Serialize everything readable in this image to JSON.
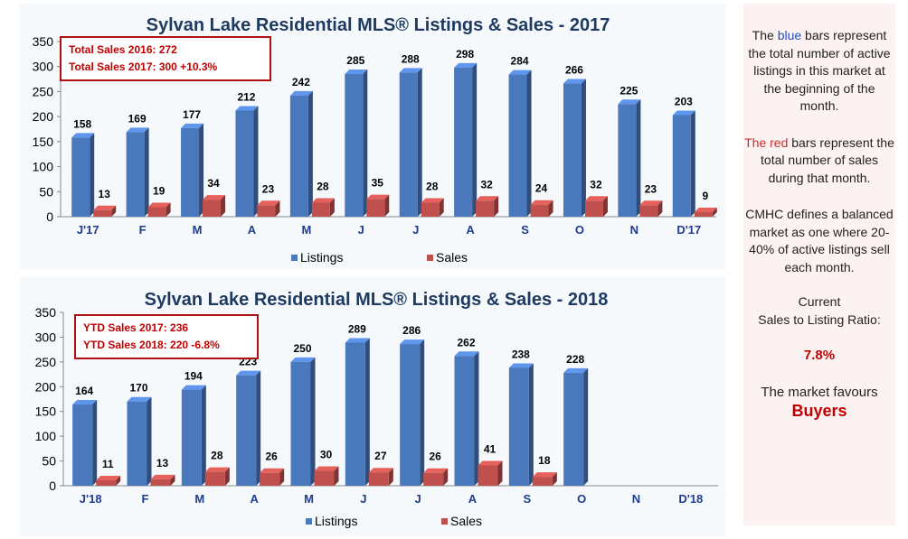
{
  "chart_data": [
    {
      "type": "bar",
      "title": "Sylvan Lake Residential MLS® Listings & Sales - 2017",
      "categories": [
        "J'17",
        "F",
        "M",
        "A",
        "M",
        "J",
        "J",
        "A",
        "S",
        "O",
        "N",
        "D'17"
      ],
      "series": [
        {
          "name": "Listings",
          "values": [
            158,
            169,
            177,
            212,
            242,
            285,
            288,
            298,
            284,
            266,
            225,
            203
          ]
        },
        {
          "name": "Sales",
          "values": [
            13,
            19,
            34,
            23,
            28,
            35,
            28,
            32,
            24,
            32,
            23,
            9
          ]
        }
      ],
      "yticks": [
        "0",
        "50",
        "100",
        "150",
        "200",
        "250",
        "300",
        "350"
      ],
      "ylim": [
        0,
        350
      ],
      "grid": false,
      "legend": "bottom",
      "colors": {
        "Listings": "#4a78bd",
        "Sales": "#c0504d"
      },
      "annotation": {
        "line1": "Total Sales 2016: 272",
        "line2": "Total Sales 2017: 300  +10.3%"
      }
    },
    {
      "type": "bar",
      "title": "Sylvan Lake Residential MLS® Listings & Sales - 2018",
      "categories": [
        "J'18",
        "F",
        "M",
        "A",
        "M",
        "J",
        "J",
        "A",
        "S",
        "O",
        "N",
        "D'18"
      ],
      "series": [
        {
          "name": "Listings",
          "values": [
            164,
            170,
            194,
            223,
            250,
            289,
            286,
            262,
            238,
            228,
            null,
            null
          ]
        },
        {
          "name": "Sales",
          "values": [
            11,
            13,
            28,
            26,
            30,
            27,
            26,
            41,
            18,
            null,
            null,
            null
          ]
        }
      ],
      "yticks": [
        "0",
        "50",
        "100",
        "150",
        "200",
        "250",
        "300",
        "350"
      ],
      "ylim": [
        0,
        350
      ],
      "grid": false,
      "legend": "bottom",
      "colors": {
        "Listings": "#4a78bd",
        "Sales": "#c0504d"
      },
      "annotation": {
        "line1": "YTD Sales 2017: 236",
        "line2": "YTD Sales 2018: 220  -6.8%"
      }
    }
  ],
  "sidebar": {
    "p1_pre": "The ",
    "p1_blue": "blue",
    "p1_post": " bars represent the total number of active listings in this market at the beginning of the month.",
    "p2_red": "The red",
    "p2_post": " bars represent the total number of sales during that month.",
    "p3": "CMHC defines a balanced market as one where 20-40% of active listings sell each month.",
    "p4_line1": "Current",
    "p4_line2": "Sales to Listing Ratio:",
    "ratio": "7.8%",
    "favours_text": "The market favours",
    "favours": "Buyers",
    "colors": {
      "blue": "#1f4fbf",
      "red": "#cc2a2a",
      "emphasis": "#c00000"
    }
  }
}
